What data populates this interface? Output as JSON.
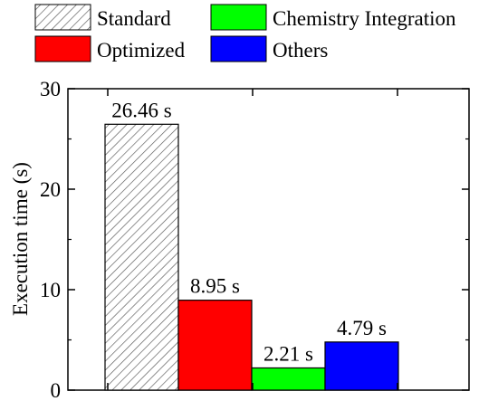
{
  "chart_data": {
    "type": "bar",
    "categories": [
      "Standard",
      "Optimized",
      "Chemistry Integration",
      "Others"
    ],
    "values": [
      26.46,
      8.95,
      2.21,
      4.79
    ],
    "data_labels": [
      "26.46 s",
      "8.95 s",
      "2.21 s",
      "4.79 s"
    ],
    "colors": [
      "hatched",
      "#ff0000",
      "#00ff00",
      "#0000ff"
    ],
    "title": "",
    "xlabel": "",
    "ylabel": "Execution time (s)",
    "ylim": [
      0,
      30
    ],
    "yticks": [
      0,
      10,
      20,
      30
    ],
    "grid": false,
    "legend": {
      "position": "top",
      "entries": [
        {
          "label": "Standard",
          "fill": "hatched"
        },
        {
          "label": "Chemistry Integration",
          "fill": "#00ff00"
        },
        {
          "label": "Optimized",
          "fill": "#ff0000"
        },
        {
          "label": "Others",
          "fill": "#0000ff"
        }
      ]
    }
  }
}
